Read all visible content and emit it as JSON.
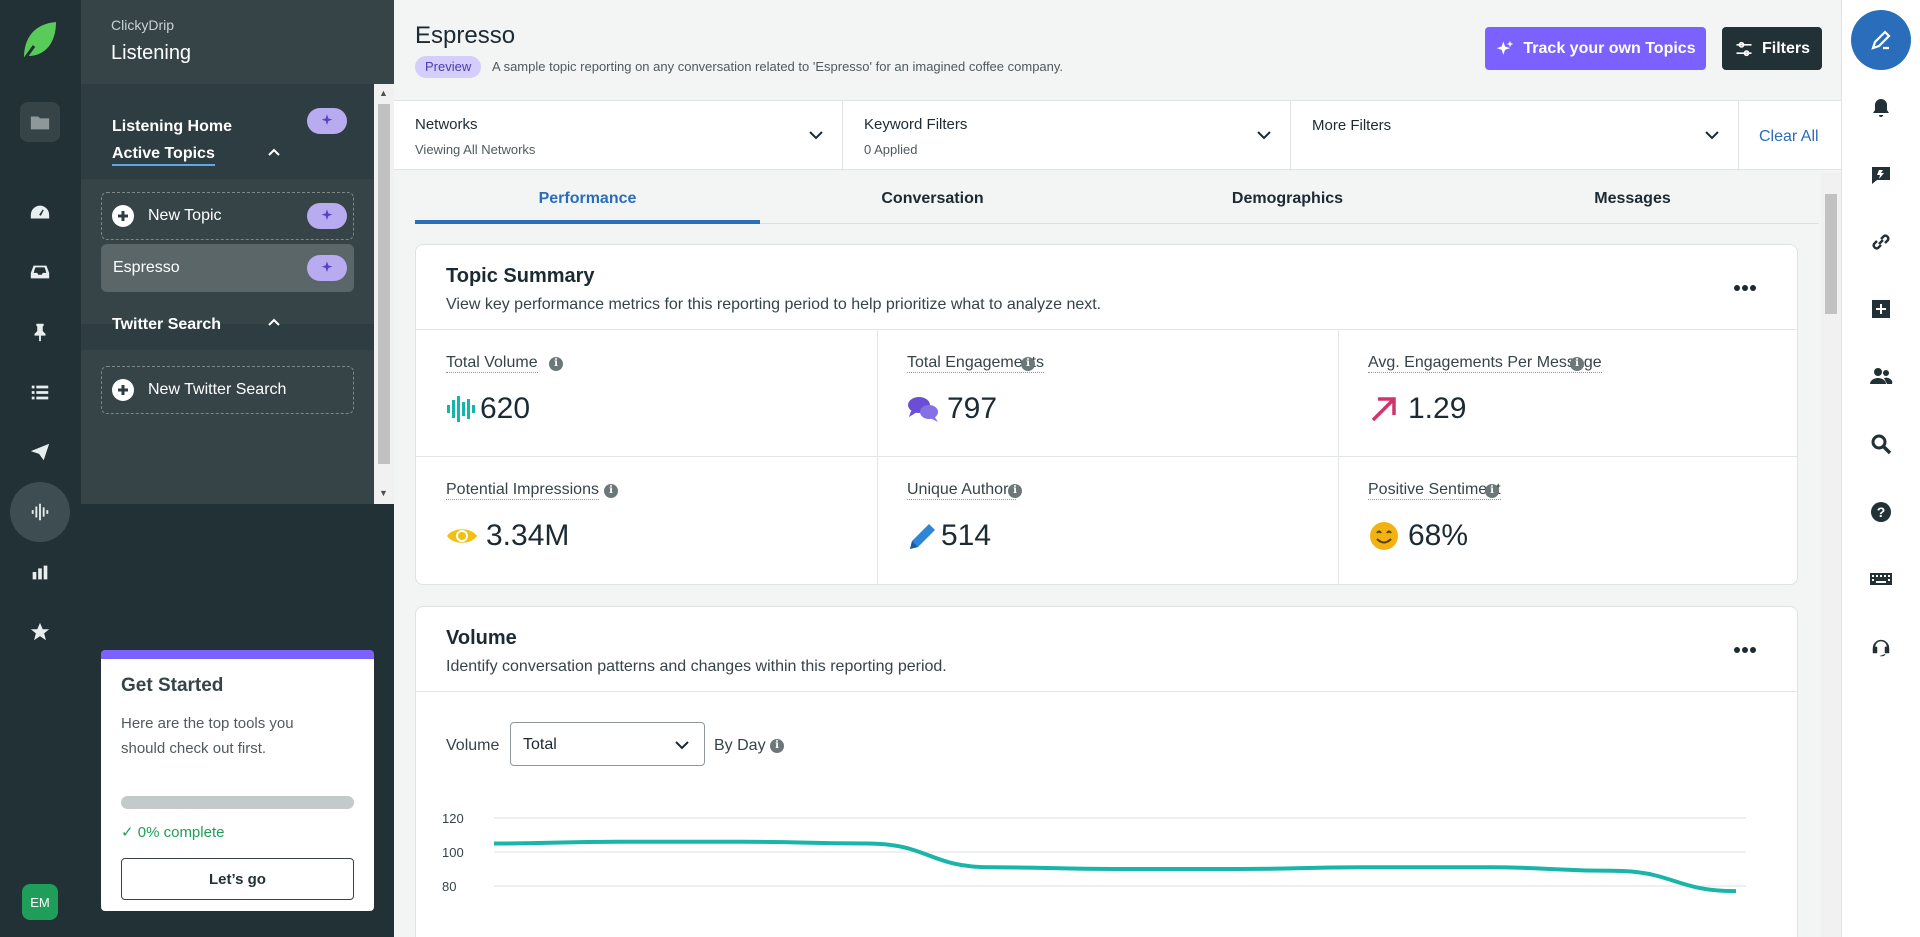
{
  "nav": {
    "org_name": "ClickyDrip",
    "app_name": "Listening",
    "avatar_initials": "EM",
    "listening_home": "Listening Home",
    "active_topics": "Active Topics",
    "new_topic": "New Topic",
    "topic_item": "Espresso",
    "twitter_search": "Twitter Search",
    "new_twitter_search": "New Twitter Search"
  },
  "get_started": {
    "title": "Get Started",
    "description": "Here are the top tools you should check out first.",
    "progress_fraction": 0,
    "progress_label": "0% complete",
    "button": "Let’s go"
  },
  "header": {
    "title": "Espresso",
    "badge": "Preview",
    "description": "A sample topic reporting on any conversation related to 'Espresso' for an imagined coffee company.",
    "track_button": "Track your own Topics",
    "filters_button": "Filters"
  },
  "filters": {
    "networks_label": "Networks",
    "networks_value": "Viewing All Networks",
    "keyword_label": "Keyword Filters",
    "keyword_value": "0 Applied",
    "more_label": "More Filters",
    "clear_all": "Clear All"
  },
  "tabs": [
    "Performance",
    "Conversation",
    "Demographics",
    "Messages"
  ],
  "summary": {
    "title": "Topic Summary",
    "description": "View key performance metrics for this reporting period to help prioritize what to analyze next.",
    "metrics": [
      {
        "label": "Total Volume",
        "value": "620",
        "icon": "volume-bars-icon",
        "color": "#16b5a8"
      },
      {
        "label": "Total Engagements",
        "value": "797",
        "icon": "chat-bubbles-icon",
        "color": "#6a4fd6"
      },
      {
        "label": "Avg. Engagements Per Message",
        "value": "1.29",
        "icon": "arrow-up-right-icon",
        "color": "#d0346e"
      },
      {
        "label": "Potential Impressions",
        "value": "3.34M",
        "icon": "eye-icon",
        "color": "#f2c011"
      },
      {
        "label": "Unique Authors",
        "value": "514",
        "icon": "pencil-icon",
        "color": "#2f86d6"
      },
      {
        "label": "Positive Sentiment",
        "value": "68%",
        "icon": "smiley-icon",
        "color": "#f2b312"
      }
    ]
  },
  "volume": {
    "title": "Volume",
    "description": "Identify conversation patterns and changes within this reporting period.",
    "control_label": "Volume",
    "select_value": "Total",
    "byday_label": "By Day"
  },
  "chart_data": {
    "type": "line",
    "y_ticks": [
      "120",
      "100",
      "80"
    ],
    "ylim": [
      75,
      120
    ],
    "series": [
      {
        "values": [
          105,
          106,
          106,
          105,
          91,
          90,
          90,
          91,
          91,
          89,
          77
        ]
      }
    ],
    "line_color": "#19b5a8",
    "grid": true
  }
}
